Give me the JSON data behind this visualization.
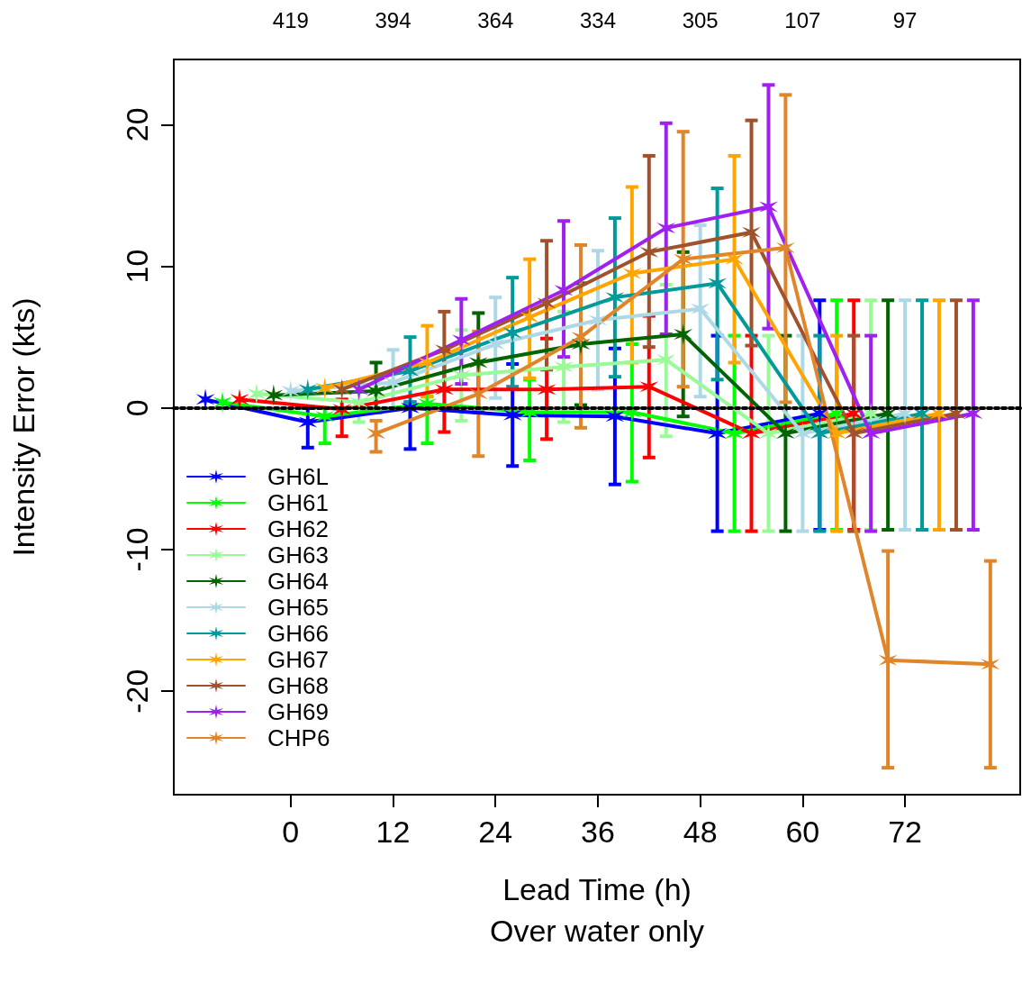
{
  "chart_data": {
    "type": "line",
    "xlabel": "Lead Time (h)\nOver water only",
    "ylabel": "Intensity Error (kts)",
    "xlim": [
      -13.7,
      85.5
    ],
    "xticks": [
      0,
      12,
      24,
      36,
      48,
      60,
      72
    ],
    "annotations": [
      "419",
      "394",
      "364",
      "334",
      "305",
      "107",
      "97"
    ],
    "ylim": [
      -27.3,
      24.6
    ],
    "yticks": [
      -20,
      -10,
      0,
      10,
      20
    ],
    "grid": false,
    "legend": "bottom left",
    "marker": "cross",
    "line_style": "solid",
    "ref_lines": [
      {
        "axis": "y",
        "value": 0,
        "label": null,
        "color": "#000000",
        "line_style": "dotted"
      }
    ],
    "series": [
      {
        "name": "GH6L",
        "color": "#0000ff",
        "x": [
          -10,
          2,
          14,
          26,
          38,
          50,
          62
        ],
        "values": [
          0.6,
          -1.0,
          0.0,
          -0.5,
          -0.6,
          -1.8,
          -0.4
        ],
        "errors": [
          null,
          [
            -2.8,
            0.0
          ],
          [
            -2.9,
            0.4
          ],
          [
            -4.1,
            3.1
          ],
          [
            -5.4,
            4.2
          ],
          [
            -8.7,
            5.1
          ],
          [
            -8.6,
            7.6
          ]
        ]
      },
      {
        "name": "GH61",
        "color": "#00ff00",
        "x": [
          -8,
          4,
          16,
          28,
          40,
          52,
          64
        ],
        "values": [
          0.4,
          -0.6,
          0.3,
          -0.3,
          -0.3,
          -1.8,
          -0.4
        ],
        "errors": [
          null,
          [
            -2.5,
            0.0
          ],
          [
            -2.5,
            0.8
          ],
          [
            -3.7,
            2.0
          ],
          [
            -5.2,
            4.5
          ],
          [
            -8.7,
            5.1
          ],
          [
            -8.6,
            7.6
          ]
        ]
      },
      {
        "name": "GH62",
        "color": "#ff0000",
        "x": [
          -6,
          6,
          18,
          30,
          42,
          54,
          66
        ],
        "values": [
          0.6,
          -0.1,
          1.3,
          1.3,
          1.5,
          -1.8,
          -0.4
        ],
        "errors": [
          null,
          [
            -2.0,
            0.6
          ],
          [
            -1.7,
            4.0
          ],
          [
            -2.2,
            4.9
          ],
          [
            -3.5,
            6.5
          ],
          [
            -8.7,
            5.1
          ],
          [
            -8.6,
            7.6
          ]
        ]
      },
      {
        "name": "GH63",
        "color": "#98fb98",
        "x": [
          -4,
          8,
          20,
          32,
          44,
          56,
          68
        ],
        "values": [
          1.0,
          0.4,
          2.3,
          2.9,
          3.4,
          -1.8,
          -0.4
        ],
        "errors": [
          null,
          [
            -1.0,
            1.8
          ],
          [
            -0.9,
            5.5
          ],
          [
            -1.0,
            6.8
          ],
          [
            -2.0,
            8.7
          ],
          [
            -8.7,
            5.1
          ],
          [
            -8.6,
            7.6
          ]
        ]
      },
      {
        "name": "GH64",
        "color": "#006400",
        "x": [
          -2,
          10,
          22,
          34,
          46,
          58,
          70
        ],
        "values": [
          0.9,
          1.2,
          3.2,
          4.5,
          5.2,
          -1.8,
          -0.4
        ],
        "errors": [
          null,
          [
            -0.3,
            3.2
          ],
          [
            -0.3,
            6.7
          ],
          [
            0.2,
            8.8
          ],
          [
            -0.6,
            11.0
          ],
          [
            -8.7,
            5.1
          ],
          [
            -8.6,
            7.6
          ]
        ]
      },
      {
        "name": "GH65",
        "color": "#add8e6",
        "x": [
          0,
          12,
          24,
          36,
          48,
          60,
          72
        ],
        "values": [
          1.2,
          1.8,
          4.5,
          6.2,
          7.0,
          -1.8,
          -0.4
        ],
        "errors": [
          null,
          [
            -0.1,
            4.1
          ],
          [
            0.7,
            7.8
          ],
          [
            1.3,
            11.1
          ],
          [
            0.8,
            12.9
          ],
          [
            -8.7,
            5.1
          ],
          [
            -8.6,
            7.6
          ]
        ]
      },
      {
        "name": "GH66",
        "color": "#009a9a",
        "x": [
          2,
          14,
          26,
          38,
          50,
          62,
          74
        ],
        "values": [
          1.3,
          2.6,
          5.3,
          7.8,
          8.8,
          -1.8,
          -0.4
        ],
        "errors": [
          null,
          [
            0.4,
            5.0
          ],
          [
            1.5,
            9.2
          ],
          [
            2.2,
            13.4
          ],
          [
            2.0,
            15.5
          ],
          [
            -8.7,
            5.1
          ],
          [
            -8.6,
            7.6
          ]
        ]
      },
      {
        "name": "GH67",
        "color": "#ffa500",
        "x": [
          4,
          16,
          28,
          40,
          52,
          64,
          76
        ],
        "values": [
          1.4,
          3.2,
          6.4,
          9.5,
          10.5,
          -1.8,
          -0.4
        ],
        "errors": [
          null,
          [
            0.8,
            5.8
          ],
          [
            2.1,
            10.5
          ],
          [
            3.2,
            15.6
          ],
          [
            3.2,
            17.8
          ],
          [
            -8.7,
            5.1
          ],
          [
            -8.6,
            7.6
          ]
        ]
      },
      {
        "name": "GH68",
        "color": "#a0522d",
        "x": [
          6,
          18,
          30,
          42,
          54,
          66,
          78
        ],
        "values": [
          1.3,
          4.1,
          7.4,
          11.0,
          12.4,
          -1.8,
          -0.4
        ],
        "errors": [
          null,
          [
            1.3,
            6.8
          ],
          [
            2.7,
            11.8
          ],
          [
            4.3,
            17.8
          ],
          [
            4.4,
            20.3
          ],
          [
            -8.7,
            5.1
          ],
          [
            -8.6,
            7.6
          ]
        ]
      },
      {
        "name": "GH69",
        "color": "#a020f0",
        "x": [
          8,
          20,
          32,
          44,
          56,
          68,
          80
        ],
        "values": [
          1.3,
          4.8,
          8.3,
          12.7,
          14.2,
          -1.8,
          -0.4
        ],
        "errors": [
          null,
          [
            1.7,
            7.7
          ],
          [
            3.6,
            13.2
          ],
          [
            5.2,
            20.1
          ],
          [
            5.6,
            22.8
          ],
          [
            -8.7,
            5.1
          ],
          [
            -8.6,
            7.6
          ]
        ]
      },
      {
        "name": "CHP6",
        "color": "#e0852a",
        "x": [
          10,
          22,
          34,
          46,
          58,
          70,
          82
        ],
        "values": [
          -1.8,
          1.0,
          5.0,
          10.5,
          11.3,
          -17.8,
          -18.1
        ],
        "errors": [
          [
            -3.1,
            -0.9
          ],
          [
            -3.4,
            5.4
          ],
          [
            -1.4,
            11.5
          ],
          [
            1.5,
            19.5
          ],
          [
            0.4,
            22.1
          ],
          [
            -25.4,
            -10.1
          ],
          [
            -25.4,
            -10.8
          ]
        ]
      }
    ]
  }
}
